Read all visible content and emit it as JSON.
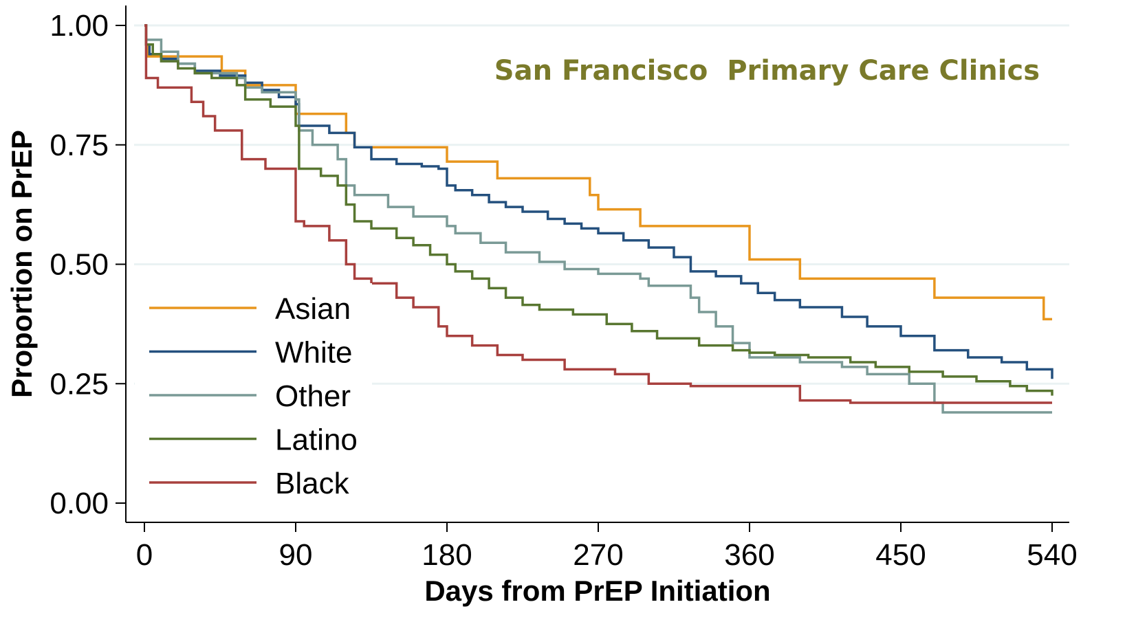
{
  "chart_data": {
    "type": "line",
    "step": true,
    "xlabel": "Days from PrEP Initiation",
    "ylabel": "Proportion on PrEP",
    "annotation": "San Francisco  Primary Care Clinics",
    "annotation_color": "#7a7a2a",
    "xlim": [
      0,
      540
    ],
    "ylim": [
      0,
      1
    ],
    "xticks": [
      0,
      90,
      180,
      270,
      360,
      450,
      540
    ],
    "xtick_labels": [
      "0",
      "90",
      "180",
      "270",
      "360",
      "450",
      "540"
    ],
    "yticks": [
      0,
      0.25,
      0.5,
      0.75,
      1.0
    ],
    "ytick_labels": [
      "0.00",
      "0.25",
      "0.50",
      "0.75",
      "1.00"
    ],
    "grid": true,
    "legend_position": "bottom-left",
    "series": [
      {
        "name": "Asian",
        "color": "#e8961e",
        "x": [
          0,
          1,
          2,
          46,
          60,
          90,
          120,
          125,
          180,
          210,
          265,
          270,
          295,
          360,
          390,
          470,
          535,
          540
        ],
        "y": [
          1.0,
          0.96,
          0.935,
          0.905,
          0.875,
          0.815,
          0.775,
          0.745,
          0.715,
          0.68,
          0.645,
          0.615,
          0.58,
          0.51,
          0.47,
          0.43,
          0.385,
          0.385
        ]
      },
      {
        "name": "White",
        "color": "#24507e",
        "x": [
          0,
          1,
          3,
          10,
          20,
          30,
          45,
          60,
          70,
          80,
          90,
          92,
          110,
          125,
          135,
          150,
          165,
          175,
          180,
          185,
          195,
          205,
          215,
          225,
          240,
          250,
          260,
          270,
          285,
          300,
          315,
          325,
          340,
          355,
          365,
          375,
          390,
          415,
          430,
          450,
          470,
          490,
          510,
          525,
          540
        ],
        "y": [
          1.0,
          0.96,
          0.94,
          0.93,
          0.92,
          0.905,
          0.895,
          0.88,
          0.865,
          0.85,
          0.835,
          0.79,
          0.775,
          0.745,
          0.72,
          0.71,
          0.705,
          0.7,
          0.665,
          0.655,
          0.645,
          0.63,
          0.62,
          0.61,
          0.595,
          0.585,
          0.575,
          0.565,
          0.55,
          0.535,
          0.515,
          0.485,
          0.475,
          0.46,
          0.44,
          0.425,
          0.41,
          0.39,
          0.37,
          0.35,
          0.32,
          0.305,
          0.295,
          0.28,
          0.26
        ]
      },
      {
        "name": "Other",
        "color": "#7a9a96",
        "x": [
          0,
          1,
          10,
          20,
          30,
          55,
          60,
          70,
          90,
          92,
          100,
          115,
          120,
          125,
          145,
          160,
          180,
          185,
          200,
          215,
          235,
          250,
          270,
          295,
          300,
          325,
          330,
          340,
          350,
          360,
          390,
          415,
          430,
          455,
          470,
          475,
          540
        ],
        "y": [
          1.0,
          0.97,
          0.945,
          0.92,
          0.9,
          0.89,
          0.87,
          0.86,
          0.845,
          0.78,
          0.75,
          0.72,
          0.665,
          0.645,
          0.62,
          0.6,
          0.58,
          0.565,
          0.545,
          0.525,
          0.505,
          0.49,
          0.48,
          0.47,
          0.455,
          0.43,
          0.4,
          0.37,
          0.335,
          0.305,
          0.295,
          0.285,
          0.27,
          0.25,
          0.21,
          0.19,
          0.19
        ]
      },
      {
        "name": "Latino",
        "color": "#587630",
        "x": [
          0,
          1,
          5,
          10,
          20,
          30,
          40,
          55,
          60,
          75,
          90,
          92,
          105,
          115,
          120,
          125,
          135,
          150,
          160,
          170,
          180,
          185,
          195,
          205,
          215,
          225,
          235,
          255,
          275,
          290,
          305,
          330,
          350,
          360,
          375,
          395,
          420,
          435,
          455,
          475,
          495,
          515,
          525,
          540
        ],
        "y": [
          1.0,
          0.96,
          0.94,
          0.925,
          0.91,
          0.9,
          0.89,
          0.875,
          0.845,
          0.83,
          0.79,
          0.7,
          0.685,
          0.665,
          0.625,
          0.59,
          0.575,
          0.555,
          0.54,
          0.52,
          0.5,
          0.485,
          0.47,
          0.45,
          0.43,
          0.415,
          0.405,
          0.395,
          0.375,
          0.36,
          0.345,
          0.33,
          0.32,
          0.315,
          0.31,
          0.305,
          0.295,
          0.285,
          0.275,
          0.265,
          0.255,
          0.245,
          0.235,
          0.225
        ]
      },
      {
        "name": "Black",
        "color": "#a8403e",
        "x": [
          0,
          1,
          8,
          28,
          35,
          42,
          58,
          72,
          90,
          95,
          110,
          120,
          125,
          135,
          150,
          160,
          175,
          180,
          195,
          210,
          225,
          250,
          280,
          300,
          325,
          340,
          390,
          420,
          540
        ],
        "y": [
          1.0,
          0.89,
          0.87,
          0.84,
          0.81,
          0.78,
          0.72,
          0.7,
          0.59,
          0.58,
          0.55,
          0.5,
          0.47,
          0.46,
          0.43,
          0.41,
          0.37,
          0.35,
          0.33,
          0.31,
          0.3,
          0.28,
          0.27,
          0.25,
          0.245,
          0.245,
          0.215,
          0.21,
          0.21
        ]
      }
    ]
  }
}
